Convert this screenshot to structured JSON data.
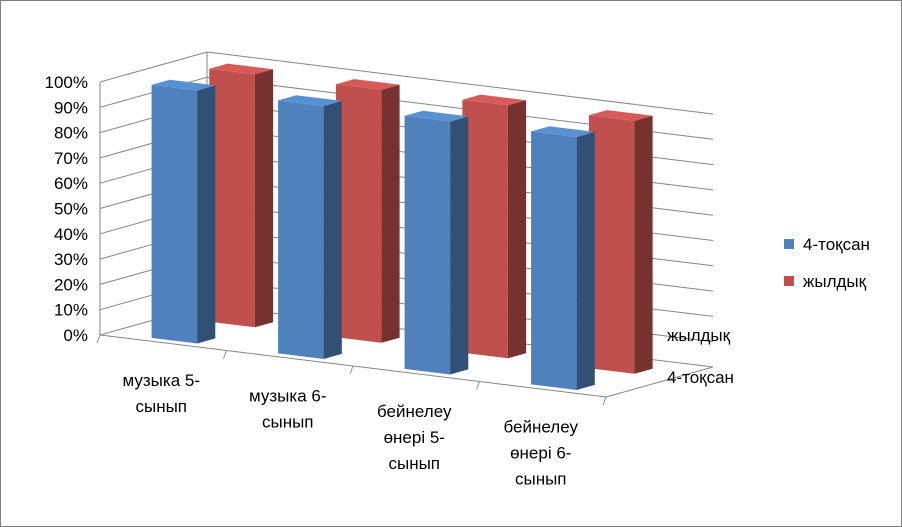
{
  "chart_data": {
    "type": "bar",
    "chart_style": "3d-clustered-column",
    "categories": [
      [
        "музыка  5-",
        "сынып"
      ],
      [
        "музыка  6-",
        "сынып"
      ],
      [
        "бейнелеу",
        "өнері  5-",
        "сынып"
      ],
      [
        "бейнелеу",
        "өнері  6-",
        "сынып"
      ]
    ],
    "series": [
      {
        "name": "4-тоқсан",
        "values": [
          100,
          100,
          100,
          100
        ],
        "color": "#4f81bd"
      },
      {
        "name": "жылдық",
        "values": [
          100,
          100,
          100,
          100
        ],
        "color": "#c0504d"
      }
    ],
    "depth_axis_labels": [
      "жылдық",
      "4-тоқсан"
    ],
    "y_ticks": [
      "0%",
      "10%",
      "20%",
      "30%",
      "40%",
      "50%",
      "60%",
      "70%",
      "80%",
      "90%",
      "100%"
    ],
    "ylim": [
      0,
      100
    ],
    "y_unit": "%",
    "grid": true,
    "legend_position": "right"
  }
}
